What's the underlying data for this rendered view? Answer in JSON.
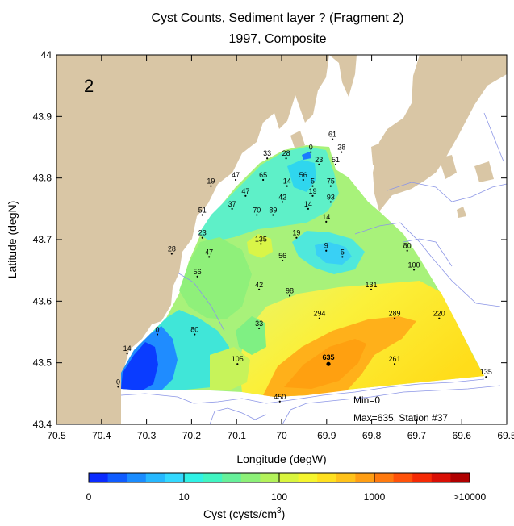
{
  "chart_data": {
    "type": "heatmap",
    "title": "Cyst Counts, Sediment layer ?  (Fragment 2)",
    "subtitle": "1997, Composite",
    "panel_label": "2",
    "xlabel": "Longitude (degW)",
    "ylabel": "Latitude (degN)",
    "xlim": [
      70.5,
      69.5
    ],
    "ylim": [
      43.4,
      44.0
    ],
    "xticks": [
      "70.5",
      "70.4",
      "70.3",
      "70.2",
      "70.1",
      "70",
      "69.9",
      "69.8",
      "69.7",
      "69.6",
      "69.5"
    ],
    "yticks": [
      "43.4",
      "43.5",
      "43.6",
      "43.7",
      "43.8",
      "43.9",
      "44"
    ],
    "colorbar": {
      "label": "Cyst (cysts/cm",
      "label_sup": "3",
      "label_end": ")",
      "ticks": [
        "0",
        "10",
        "100",
        "1000",
        ">10000"
      ],
      "colors": [
        "#0a2bff",
        "#0f5cff",
        "#1a8cff",
        "#26b8ff",
        "#33d9ff",
        "#2ff2e6",
        "#40f5c2",
        "#66f09a",
        "#8cf078",
        "#b3f25a",
        "#d9f53d",
        "#f5f52e",
        "#ffe01f",
        "#ffc21a",
        "#ff9e14",
        "#ff7a0f",
        "#ff520a",
        "#f52a05",
        "#d90f05",
        "#b00000"
      ]
    },
    "info": {
      "min": "Min=0",
      "max": "Max=635, Station #37"
    },
    "stations": [
      {
        "value": "61",
        "lon": 69.887,
        "lat": 43.863
      },
      {
        "value": "28",
        "lon": 69.867,
        "lat": 43.842
      },
      {
        "value": "0",
        "lon": 69.935,
        "lat": 43.842
      },
      {
        "value": "33",
        "lon": 70.032,
        "lat": 43.832
      },
      {
        "value": "28",
        "lon": 69.99,
        "lat": 43.832
      },
      {
        "value": "23",
        "lon": 69.917,
        "lat": 43.822
      },
      {
        "value": "51",
        "lon": 69.88,
        "lat": 43.822
      },
      {
        "value": "56",
        "lon": 69.952,
        "lat": 43.797
      },
      {
        "value": "5",
        "lon": 69.931,
        "lat": 43.787
      },
      {
        "value": "75",
        "lon": 69.891,
        "lat": 43.787
      },
      {
        "value": "47",
        "lon": 70.102,
        "lat": 43.797
      },
      {
        "value": "19",
        "lon": 70.157,
        "lat": 43.787
      },
      {
        "value": "65",
        "lon": 70.041,
        "lat": 43.797
      },
      {
        "value": "14",
        "lon": 69.988,
        "lat": 43.787
      },
      {
        "value": "19",
        "lon": 69.931,
        "lat": 43.771
      },
      {
        "value": "47",
        "lon": 70.08,
        "lat": 43.771
      },
      {
        "value": "42",
        "lon": 69.998,
        "lat": 43.761
      },
      {
        "value": "93",
        "lon": 69.891,
        "lat": 43.761
      },
      {
        "value": "37",
        "lon": 70.11,
        "lat": 43.75
      },
      {
        "value": "14",
        "lon": 69.941,
        "lat": 43.75
      },
      {
        "value": "51",
        "lon": 70.176,
        "lat": 43.74
      },
      {
        "value": "70",
        "lon": 70.055,
        "lat": 43.74
      },
      {
        "value": "89",
        "lon": 70.019,
        "lat": 43.74
      },
      {
        "value": "14",
        "lon": 69.901,
        "lat": 43.729
      },
      {
        "value": "23",
        "lon": 70.176,
        "lat": 43.703
      },
      {
        "value": "19",
        "lon": 69.967,
        "lat": 43.703
      },
      {
        "value": "135",
        "lon": 70.046,
        "lat": 43.693
      },
      {
        "value": "28",
        "lon": 70.244,
        "lat": 43.677
      },
      {
        "value": "9",
        "lon": 69.901,
        "lat": 43.682
      },
      {
        "value": "5",
        "lon": 69.865,
        "lat": 43.672
      },
      {
        "value": "80",
        "lon": 69.721,
        "lat": 43.682
      },
      {
        "value": "47",
        "lon": 70.161,
        "lat": 43.672
      },
      {
        "value": "56",
        "lon": 69.998,
        "lat": 43.666
      },
      {
        "value": "100",
        "lon": 69.706,
        "lat": 43.651
      },
      {
        "value": "56",
        "lon": 70.187,
        "lat": 43.64
      },
      {
        "value": "42",
        "lon": 70.05,
        "lat": 43.619
      },
      {
        "value": "131",
        "lon": 69.801,
        "lat": 43.619
      },
      {
        "value": "98",
        "lon": 69.982,
        "lat": 43.609
      },
      {
        "value": "294",
        "lon": 69.916,
        "lat": 43.572
      },
      {
        "value": "289",
        "lon": 69.749,
        "lat": 43.572
      },
      {
        "value": "220",
        "lon": 69.65,
        "lat": 43.572
      },
      {
        "value": "0",
        "lon": 70.276,
        "lat": 43.546
      },
      {
        "value": "80",
        "lon": 70.193,
        "lat": 43.546
      },
      {
        "value": "33",
        "lon": 70.05,
        "lat": 43.556
      },
      {
        "value": "14",
        "lon": 70.343,
        "lat": 43.515
      },
      {
        "value": "105",
        "lon": 70.098,
        "lat": 43.498
      },
      {
        "value": "635",
        "lon": 69.896,
        "lat": 43.498,
        "max": true
      },
      {
        "value": "261",
        "lon": 69.749,
        "lat": 43.498
      },
      {
        "value": "135",
        "lon": 69.546,
        "lat": 43.477
      },
      {
        "value": "0",
        "lon": 70.363,
        "lat": 43.461
      },
      {
        "value": "450",
        "lon": 70.004,
        "lat": 43.437
      }
    ]
  }
}
